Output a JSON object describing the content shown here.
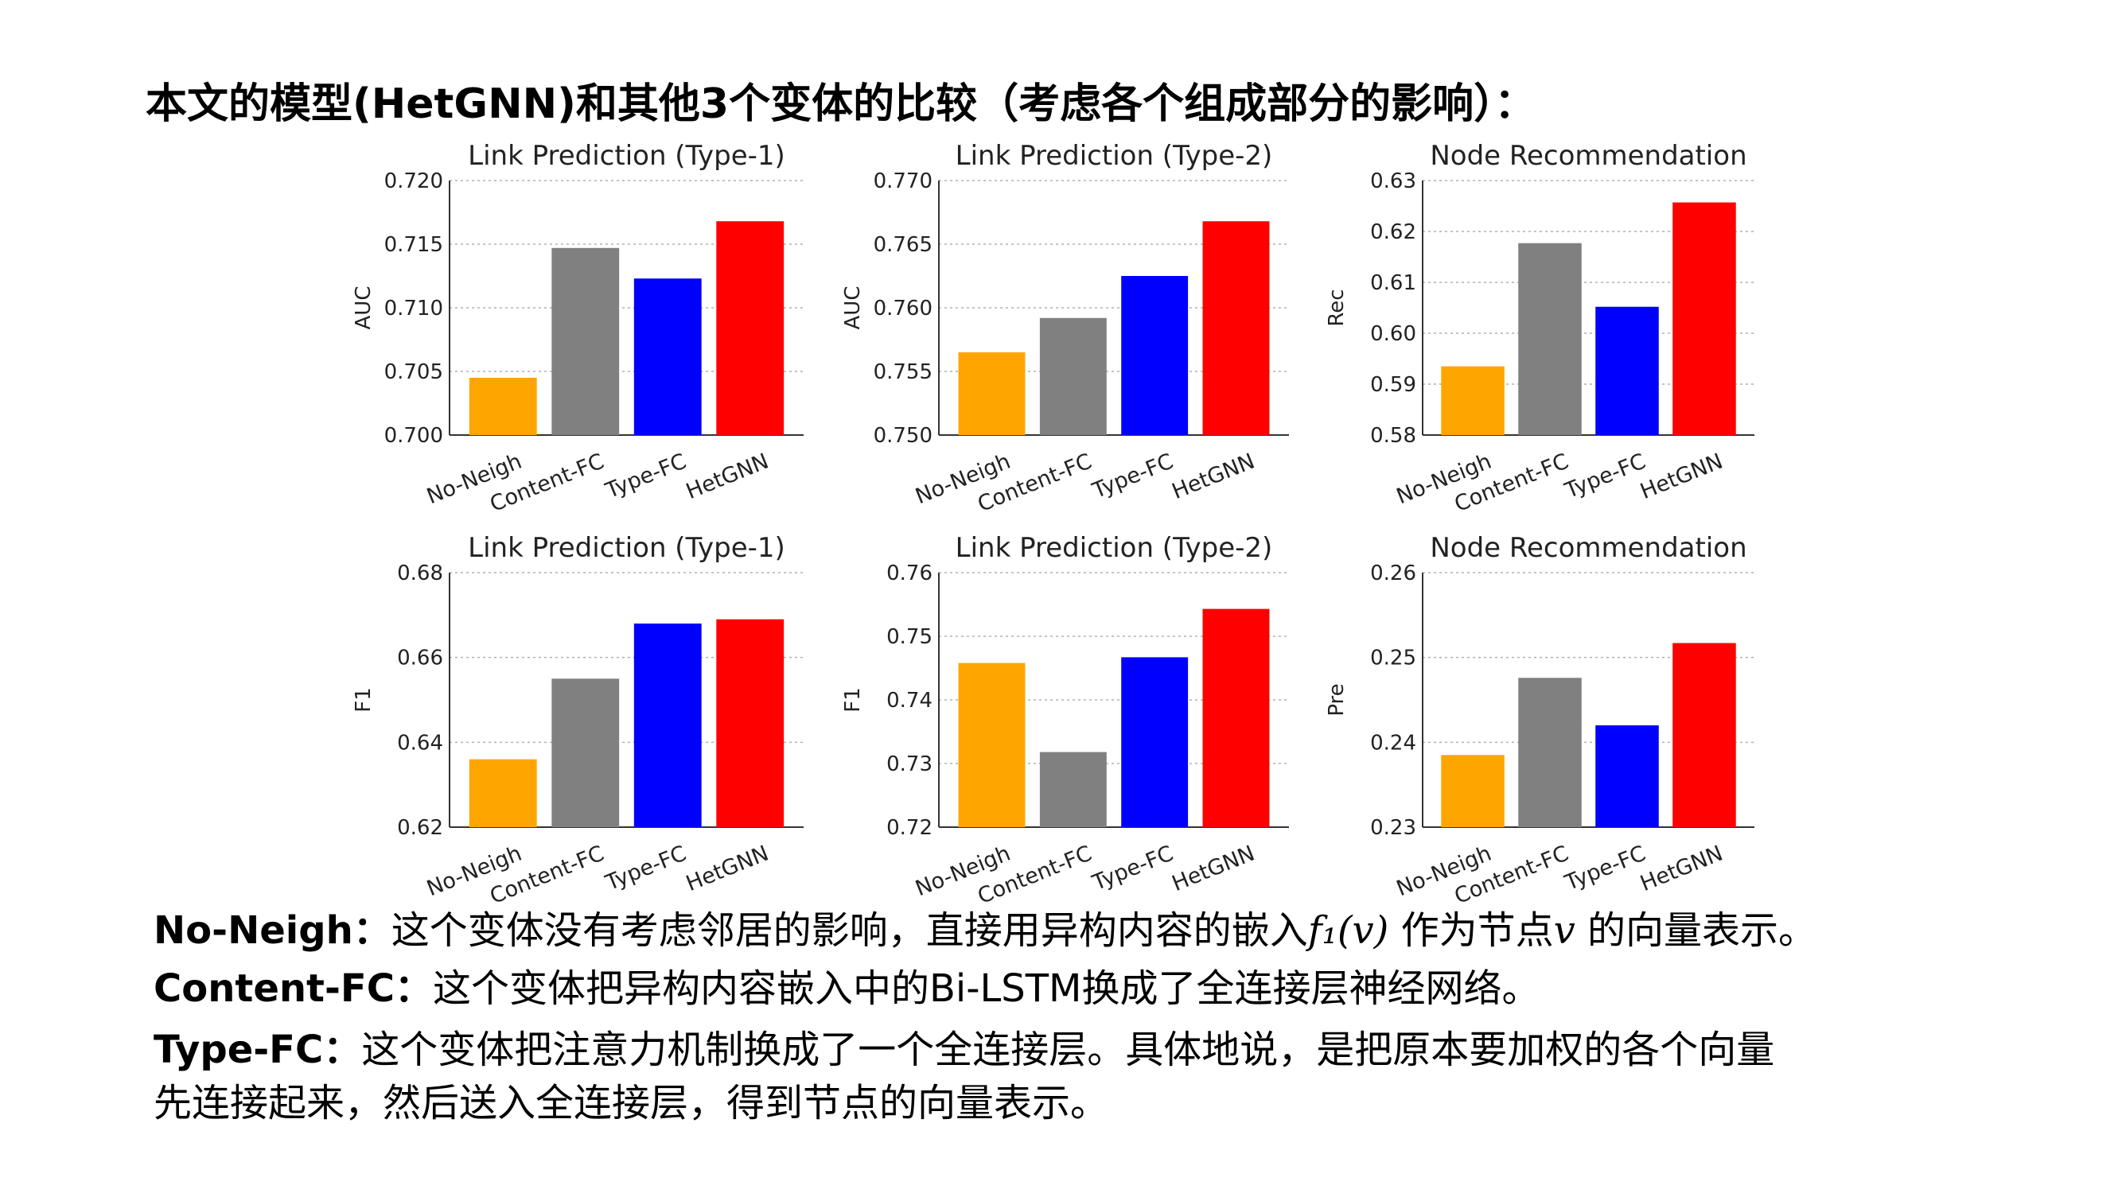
{
  "heading": "本文的模型(HetGNN)和其他3个变体的比较（考虑各个组成部分的影响）：",
  "colors": {
    "No-Neigh": "#ffa500",
    "Content-FC": "#808080",
    "Type-FC": "#0000ff",
    "HetGNN": "#ff0000"
  },
  "chart_data": [
    {
      "type": "bar",
      "title": "Link Prediction (Type-1)",
      "xlabel": "",
      "ylabel": "AUC",
      "categories": [
        "No-Neigh",
        "Content-FC",
        "Type-FC",
        "HetGNN"
      ],
      "values": [
        0.7045,
        0.7147,
        0.7123,
        0.7168
      ],
      "ylim": [
        0.7,
        0.72
      ],
      "yticks": [
        "0.700",
        "0.705",
        "0.710",
        "0.715",
        "0.720"
      ],
      "grid": "y"
    },
    {
      "type": "bar",
      "title": "Link Prediction (Type-2)",
      "xlabel": "",
      "ylabel": "AUC",
      "categories": [
        "No-Neigh",
        "Content-FC",
        "Type-FC",
        "HetGNN"
      ],
      "values": [
        0.7565,
        0.7592,
        0.7625,
        0.7668
      ],
      "ylim": [
        0.75,
        0.77
      ],
      "yticks": [
        "0.750",
        "0.755",
        "0.760",
        "0.765",
        "0.770"
      ],
      "grid": "y"
    },
    {
      "type": "bar",
      "title": "Node Recommendation",
      "xlabel": "",
      "ylabel": "Rec",
      "categories": [
        "No-Neigh",
        "Content-FC",
        "Type-FC",
        "HetGNN"
      ],
      "values": [
        0.5935,
        0.6177,
        0.6052,
        0.6257
      ],
      "ylim": [
        0.58,
        0.63
      ],
      "yticks": [
        "0.58",
        "0.59",
        "0.60",
        "0.61",
        "0.62",
        "0.63"
      ],
      "grid": "y"
    },
    {
      "type": "bar",
      "title": "Link Prediction (Type-1)",
      "xlabel": "",
      "ylabel": "F1",
      "categories": [
        "No-Neigh",
        "Content-FC",
        "Type-FC",
        "HetGNN"
      ],
      "values": [
        0.636,
        0.655,
        0.668,
        0.669
      ],
      "ylim": [
        0.62,
        0.68
      ],
      "yticks": [
        "0.62",
        "0.64",
        "0.66",
        "0.68"
      ],
      "grid": "y"
    },
    {
      "type": "bar",
      "title": "Link Prediction (Type-2)",
      "xlabel": "",
      "ylabel": "F1",
      "categories": [
        "No-Neigh",
        "Content-FC",
        "Type-FC",
        "HetGNN"
      ],
      "values": [
        0.7458,
        0.7318,
        0.7467,
        0.7543
      ],
      "ylim": [
        0.72,
        0.76
      ],
      "yticks": [
        "0.72",
        "0.73",
        "0.74",
        "0.75",
        "0.76"
      ],
      "grid": "y"
    },
    {
      "type": "bar",
      "title": "Node Recommendation",
      "xlabel": "",
      "ylabel": "Pre",
      "categories": [
        "No-Neigh",
        "Content-FC",
        "Type-FC",
        "HetGNN"
      ],
      "values": [
        0.2385,
        0.2476,
        0.242,
        0.2517
      ],
      "ylim": [
        0.23,
        0.26
      ],
      "yticks": [
        "0.23",
        "0.24",
        "0.25",
        "0.26"
      ],
      "grid": "y"
    }
  ],
  "descriptions": {
    "no_neigh": {
      "term": "No-Neigh：",
      "text_a": "这个变体没有考虑邻居的影响，直接用异构内容的嵌入",
      "math_f": "f₁(v)",
      "text_b": " 作为节点",
      "math_v": "v",
      "text_c": " 的向量表示。"
    },
    "content_fc": {
      "term": "Content-FC：",
      "text": "这个变体把异构内容嵌入中的Bi-LSTM换成了全连接层神经网络。"
    },
    "type_fc": {
      "term": "Type-FC：",
      "text_1": "这个变体把注意力机制换成了一个全连接层。具体地说，是把原本要加权的各个向量",
      "text_2": "先连接起来，然后送入全连接层，得到节点的向量表示。"
    }
  }
}
